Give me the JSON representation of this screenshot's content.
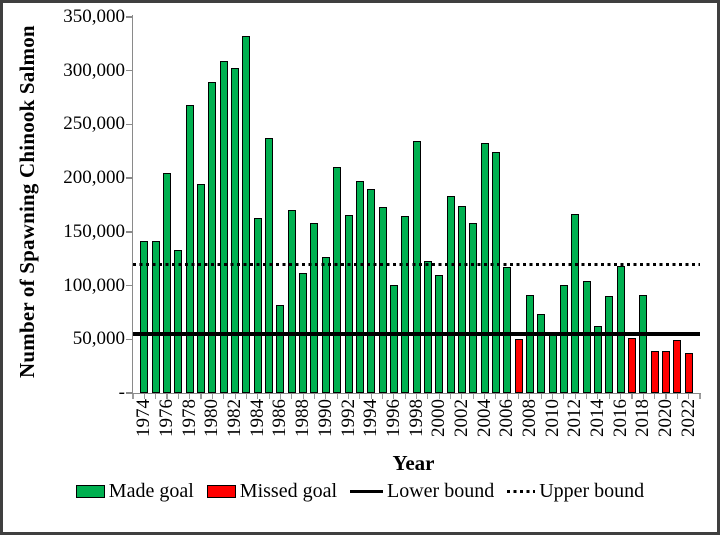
{
  "figure": {
    "background": "#ffffff",
    "border_color": "#3f3f3f"
  },
  "chart_data": {
    "type": "bar",
    "title": "",
    "xlabel": "Year",
    "ylabel": "Number of Spawning Chinook Salmon",
    "ylim": [
      0,
      350000
    ],
    "ytick_step": 50000,
    "ytick_labels": [
      "-",
      "50,000",
      "100,000",
      "150,000",
      "200,000",
      "250,000",
      "300,000",
      "350,000"
    ],
    "xtick_labels": [
      "1974",
      "1976",
      "1978",
      "1980",
      "1982",
      "1984",
      "1986",
      "1988",
      "1990",
      "1992",
      "1994",
      "1996",
      "1998",
      "2000",
      "2002",
      "2004",
      "2006",
      "2008",
      "2010",
      "2012",
      "2014",
      "2016",
      "2018",
      "2020",
      "2022"
    ],
    "categories": [
      1974,
      1975,
      1976,
      1977,
      1978,
      1979,
      1980,
      1981,
      1982,
      1983,
      1984,
      1985,
      1986,
      1987,
      1988,
      1989,
      1990,
      1991,
      1992,
      1993,
      1994,
      1995,
      1996,
      1997,
      1998,
      1999,
      2000,
      2001,
      2002,
      2003,
      2004,
      2005,
      2006,
      2007,
      2008,
      2009,
      2010,
      2011,
      2012,
      2013,
      2014,
      2015,
      2016,
      2017,
      2018,
      2019,
      2020,
      2021,
      2022
    ],
    "values": [
      142000,
      142000,
      205000,
      133000,
      268000,
      195000,
      290000,
      309000,
      303000,
      332000,
      163000,
      237000,
      82000,
      170000,
      112000,
      158000,
      127000,
      210000,
      166000,
      197000,
      190000,
      173000,
      101000,
      165000,
      235000,
      123000,
      110000,
      183000,
      174000,
      158000,
      233000,
      224000,
      117000,
      50000,
      91000,
      74000,
      56000,
      101000,
      167000,
      104000,
      62000,
      90000,
      118000,
      51000,
      91000,
      39000,
      39000,
      49000,
      37000
    ],
    "missed_goal_years": [
      2007,
      2017,
      2019,
      2020,
      2021,
      2022
    ],
    "lower_bound": 55000,
    "upper_bound": 120000,
    "colors": {
      "made": "#00B050",
      "missed": "#FF0000",
      "bound_line": "#000000"
    },
    "grid": "off",
    "legend_position": "bottom"
  },
  "legend": {
    "items": [
      {
        "label": "Made goal",
        "marker": "green-swatch",
        "color": "#00B050"
      },
      {
        "label": "Missed goal",
        "marker": "red-swatch",
        "color": "#FF0000"
      },
      {
        "label": "Lower bound",
        "marker": "solid-line",
        "color": "#000000"
      },
      {
        "label": "Upper bound",
        "marker": "dotted-line",
        "color": "#000000"
      }
    ]
  }
}
